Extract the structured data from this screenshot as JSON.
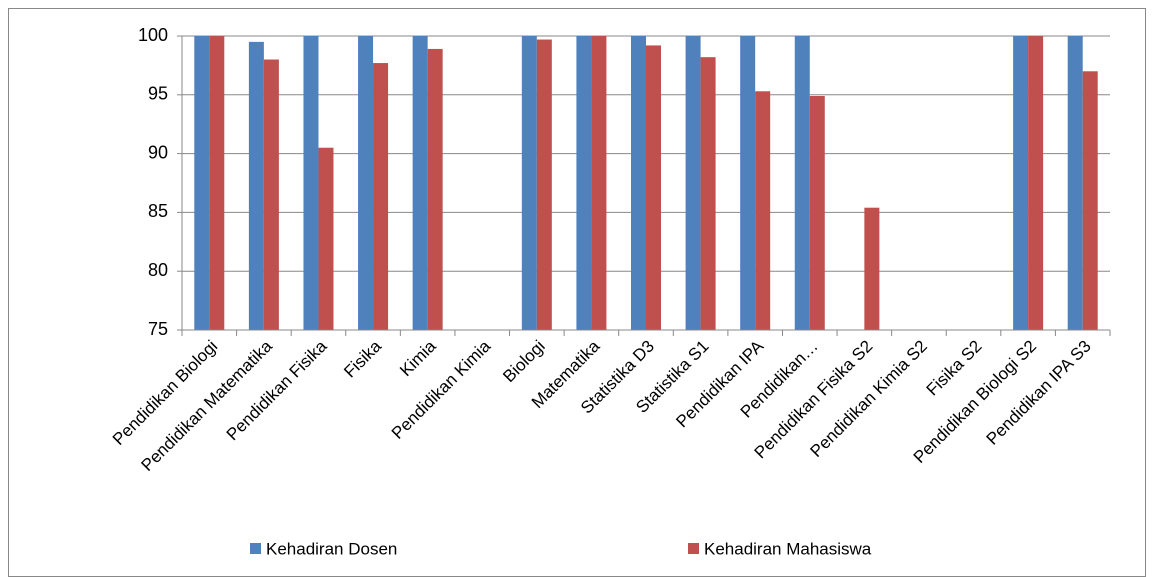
{
  "chart_data": {
    "type": "bar",
    "categories": [
      "Pendidikan Biologi",
      "Pendidikan Matematika",
      "Pendidikan Fisika",
      "Fisika",
      "Kimia",
      "Pendidikan Kimia",
      "Biologi",
      "Matematika",
      "Statistika D3",
      "Statistika S1",
      "Pendidikan IPA",
      "Pendidikan…",
      "Pendidikan Fisika S2",
      "Pendidikan Kimia S2",
      "Fisika S2",
      "Pendidikan Biologi S2",
      "Pendidikan IPA S3"
    ],
    "series": [
      {
        "name": "Kehadiran Dosen",
        "color": "#4f81bd",
        "values": [
          100,
          99.5,
          100,
          100,
          100,
          null,
          100,
          100,
          100,
          100,
          100,
          100,
          null,
          null,
          null,
          100,
          100
        ]
      },
      {
        "name": "Kehadiran Mahasiswa",
        "color": "#c0504d",
        "values": [
          100,
          98,
          90.5,
          97.7,
          98.9,
          null,
          99.7,
          100,
          99.2,
          98.2,
          95.3,
          94.9,
          85.4,
          null,
          null,
          100,
          97
        ]
      }
    ],
    "ylim": [
      75,
      100
    ],
    "yticks": [
      75,
      80,
      85,
      90,
      95,
      100
    ],
    "grid": true,
    "legend": "bottom"
  }
}
